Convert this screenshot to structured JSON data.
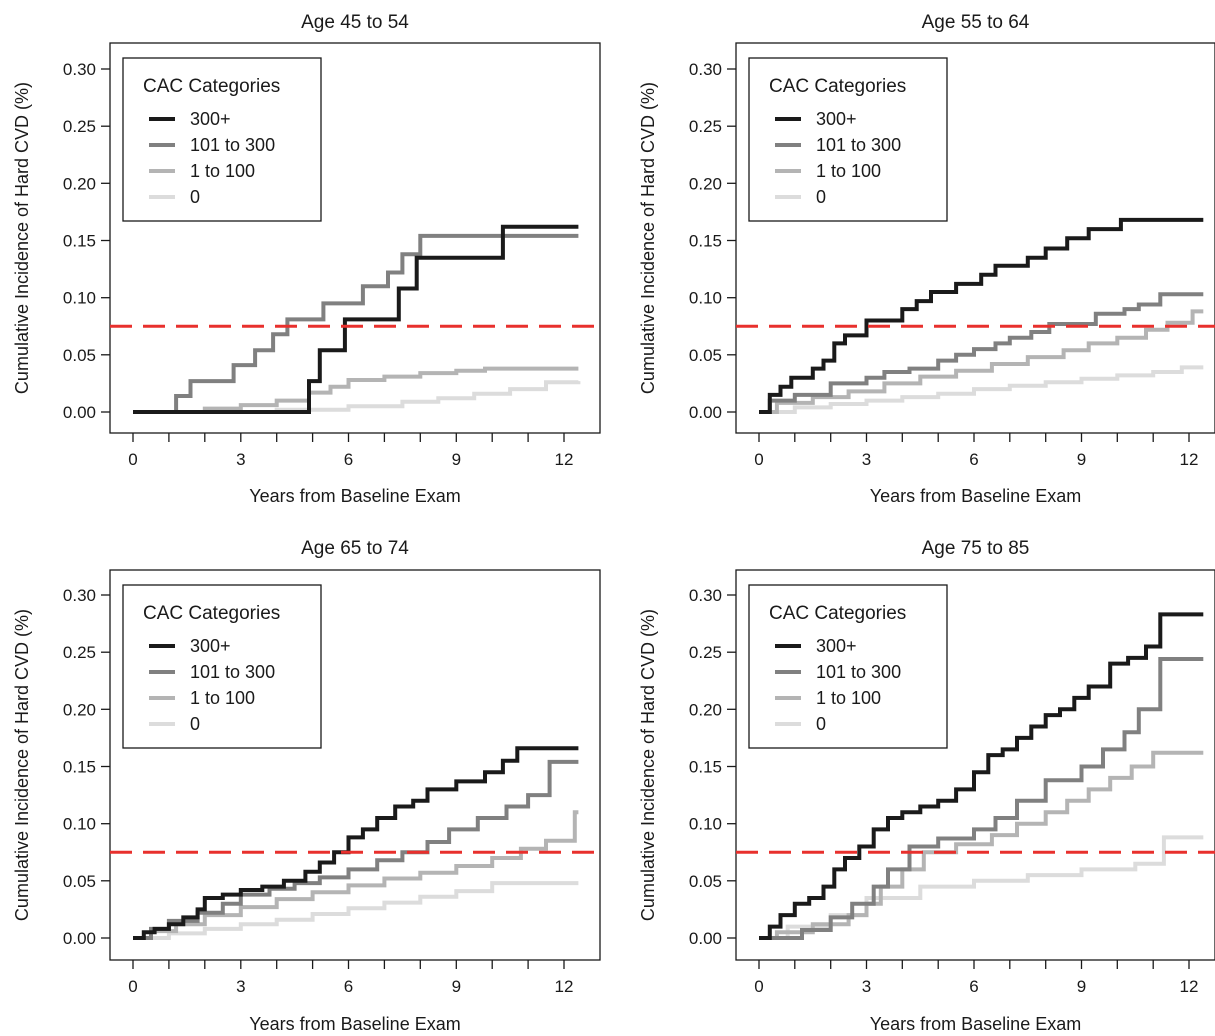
{
  "reference_line": {
    "value": 0.075,
    "color": "#e8302d"
  },
  "series_styles": [
    {
      "name": "300+",
      "color": "#1a1a1a"
    },
    {
      "name": "101 to 300",
      "color": "#808080"
    },
    {
      "name": "1 to 100",
      "color": "#b4b4b4"
    },
    {
      "name": "0",
      "color": "#dcdcdc"
    }
  ],
  "chart_data": [
    {
      "type": "line",
      "step": true,
      "title": "Age 45 to 54",
      "xlabel": "Years from Baseline Exam",
      "ylabel": "Cumulative Incidence of Hard CVD (%)",
      "xlim": [
        0,
        12.5
      ],
      "ylim": [
        0,
        0.3
      ],
      "xticks": [
        0,
        3,
        6,
        9,
        12
      ],
      "yticks": [
        "0.00",
        "0.05",
        "0.10",
        "0.15",
        "0.20",
        "0.25",
        "0.30"
      ],
      "legend": {
        "title": "CAC Categories",
        "position": "top-left",
        "entries": [
          "300+",
          "101 to 300",
          "1 to 100",
          "0"
        ]
      },
      "series": [
        {
          "name": "300+",
          "x": [
            0,
            4.9,
            5.2,
            5.9,
            7.4,
            7.9,
            10.3,
            12.4
          ],
          "y": [
            0,
            0.027,
            0.054,
            0.081,
            0.108,
            0.135,
            0.162,
            0.162
          ]
        },
        {
          "name": "101 to 300",
          "x": [
            0,
            1.2,
            1.6,
            2.8,
            3.4,
            3.9,
            4.3,
            5.3,
            6.4,
            7.1,
            7.5,
            8.0,
            12.4
          ],
          "y": [
            0,
            0.014,
            0.027,
            0.041,
            0.054,
            0.068,
            0.081,
            0.095,
            0.11,
            0.122,
            0.138,
            0.154,
            0.154
          ]
        },
        {
          "name": "1 to 100",
          "x": [
            0,
            2.0,
            3.0,
            4.0,
            4.9,
            5.5,
            6.0,
            7.0,
            8.0,
            9.0,
            9.8,
            12.4
          ],
          "y": [
            0,
            0.003,
            0.006,
            0.01,
            0.017,
            0.022,
            0.028,
            0.031,
            0.034,
            0.036,
            0.038,
            0.038
          ]
        },
        {
          "name": "0",
          "x": [
            0,
            4.0,
            6.0,
            7.5,
            8.5,
            9.5,
            10.5,
            11.5,
            12.4
          ],
          "y": [
            0,
            0.002,
            0.005,
            0.009,
            0.012,
            0.016,
            0.02,
            0.026,
            0.027
          ]
        }
      ]
    },
    {
      "type": "line",
      "step": true,
      "title": "Age 55 to 64",
      "xlabel": "Years from Baseline Exam",
      "ylabel": "Cumulative Incidence of Hard CVD (%)",
      "xlim": [
        0,
        12.5
      ],
      "ylim": [
        0,
        0.3
      ],
      "xticks": [
        0,
        3,
        6,
        9,
        12
      ],
      "yticks": [
        "0.00",
        "0.05",
        "0.10",
        "0.15",
        "0.20",
        "0.25",
        "0.30"
      ],
      "legend": {
        "title": "CAC Categories",
        "position": "top-left",
        "entries": [
          "300+",
          "101 to 300",
          "1 to 100",
          "0"
        ]
      },
      "series": [
        {
          "name": "300+",
          "x": [
            0,
            0.3,
            0.6,
            0.9,
            1.5,
            1.8,
            2.1,
            2.4,
            3.0,
            3.6,
            4.0,
            4.4,
            4.8,
            5.5,
            6.2,
            6.6,
            7.5,
            8.0,
            8.6,
            9.2,
            10.1,
            12.4
          ],
          "y": [
            0,
            0.015,
            0.022,
            0.03,
            0.038,
            0.045,
            0.06,
            0.067,
            0.08,
            0.08,
            0.09,
            0.097,
            0.105,
            0.112,
            0.12,
            0.128,
            0.135,
            0.143,
            0.152,
            0.16,
            0.168,
            0.168
          ]
        },
        {
          "name": "101 to 300",
          "x": [
            0,
            0.3,
            1.0,
            2.0,
            3.0,
            3.5,
            4.2,
            5.0,
            5.5,
            6.0,
            6.6,
            7.0,
            7.6,
            8.1,
            9.4,
            10.2,
            10.6,
            11.2,
            12.4
          ],
          "y": [
            0,
            0.01,
            0.015,
            0.025,
            0.03,
            0.035,
            0.038,
            0.045,
            0.05,
            0.055,
            0.06,
            0.065,
            0.07,
            0.077,
            0.086,
            0.09,
            0.094,
            0.103,
            0.103
          ]
        },
        {
          "name": "1 to 100",
          "x": [
            0,
            0.5,
            1.5,
            2.5,
            3.5,
            4.5,
            5.5,
            6.5,
            7.5,
            8.5,
            9.2,
            10.0,
            10.8,
            11.4,
            12.1,
            12.4
          ],
          "y": [
            0,
            0.008,
            0.013,
            0.018,
            0.025,
            0.031,
            0.036,
            0.042,
            0.048,
            0.054,
            0.06,
            0.065,
            0.072,
            0.078,
            0.088,
            0.088
          ]
        },
        {
          "name": "0",
          "x": [
            0,
            1.0,
            2.0,
            3.0,
            4.0,
            5.0,
            6.0,
            7.0,
            8.0,
            9.0,
            10.0,
            11.0,
            11.8,
            12.4
          ],
          "y": [
            0,
            0.004,
            0.007,
            0.01,
            0.013,
            0.016,
            0.02,
            0.023,
            0.026,
            0.029,
            0.032,
            0.035,
            0.039,
            0.039
          ]
        }
      ]
    },
    {
      "type": "line",
      "step": true,
      "title": "Age 65 to 74",
      "xlabel": "Years from Baseline Exam",
      "ylabel": "Cumulative Incidence of Hard CVD (%)",
      "xlim": [
        0,
        12.5
      ],
      "ylim": [
        0,
        0.3
      ],
      "xticks": [
        0,
        3,
        6,
        9,
        12
      ],
      "yticks": [
        "0.00",
        "0.05",
        "0.10",
        "0.15",
        "0.20",
        "0.25",
        "0.30"
      ],
      "legend": {
        "title": "CAC Categories",
        "position": "top-left",
        "entries": [
          "300+",
          "101 to 300",
          "1 to 100",
          "0"
        ]
      },
      "series": [
        {
          "name": "300+",
          "x": [
            0,
            0.3,
            0.6,
            1.0,
            1.4,
            1.8,
            2.0,
            2.5,
            3.0,
            3.6,
            4.2,
            4.8,
            5.2,
            5.6,
            6.0,
            6.4,
            6.8,
            7.3,
            7.8,
            8.2,
            9.0,
            9.8,
            10.3,
            10.7,
            12.4
          ],
          "y": [
            0,
            0.005,
            0.008,
            0.012,
            0.018,
            0.025,
            0.035,
            0.038,
            0.042,
            0.045,
            0.05,
            0.058,
            0.066,
            0.075,
            0.088,
            0.095,
            0.105,
            0.115,
            0.12,
            0.13,
            0.137,
            0.145,
            0.155,
            0.166,
            0.166
          ]
        },
        {
          "name": "101 to 300",
          "x": [
            0,
            0.5,
            1.0,
            1.8,
            2.5,
            3.0,
            3.8,
            4.5,
            5.2,
            6.0,
            6.8,
            7.5,
            8.2,
            8.8,
            9.6,
            10.4,
            11.0,
            11.6,
            12.4
          ],
          "y": [
            0,
            0.008,
            0.015,
            0.022,
            0.03,
            0.038,
            0.043,
            0.048,
            0.053,
            0.06,
            0.068,
            0.075,
            0.084,
            0.095,
            0.105,
            0.115,
            0.125,
            0.154,
            0.154
          ]
        },
        {
          "name": "1 to 100",
          "x": [
            0,
            0.5,
            1.2,
            2.0,
            3.0,
            4.0,
            5.0,
            6.0,
            7.0,
            8.0,
            9.0,
            10.0,
            10.8,
            11.5,
            12.3,
            12.4
          ],
          "y": [
            0,
            0.006,
            0.012,
            0.02,
            0.027,
            0.034,
            0.04,
            0.046,
            0.052,
            0.057,
            0.063,
            0.07,
            0.078,
            0.085,
            0.11,
            0.11
          ]
        },
        {
          "name": "0",
          "x": [
            0,
            1.0,
            2.0,
            3.0,
            4.0,
            5.0,
            6.0,
            7.0,
            8.0,
            9.0,
            10.0,
            12.4
          ],
          "y": [
            0,
            0.004,
            0.008,
            0.012,
            0.016,
            0.021,
            0.026,
            0.031,
            0.036,
            0.041,
            0.048,
            0.048
          ]
        }
      ]
    },
    {
      "type": "line",
      "step": true,
      "title": "Age 75 to 85",
      "xlabel": "Years from Baseline Exam",
      "ylabel": "Cumulative Incidence of Hard CVD (%)",
      "xlim": [
        0,
        12.5
      ],
      "ylim": [
        0,
        0.3
      ],
      "xticks": [
        0,
        3,
        6,
        9,
        12
      ],
      "yticks": [
        "0.00",
        "0.05",
        "0.10",
        "0.15",
        "0.20",
        "0.25",
        "0.30"
      ],
      "legend": {
        "title": "CAC Categories",
        "position": "top-left",
        "entries": [
          "300+",
          "101 to 300",
          "1 to 100",
          "0"
        ]
      },
      "series": [
        {
          "name": "300+",
          "x": [
            0,
            0.3,
            0.6,
            1.0,
            1.4,
            1.8,
            2.1,
            2.4,
            2.8,
            3.2,
            3.6,
            4.0,
            4.5,
            5.0,
            5.5,
            6.0,
            6.4,
            6.8,
            7.2,
            7.6,
            8.0,
            8.4,
            8.8,
            9.2,
            9.8,
            10.3,
            10.8,
            11.2,
            12.4
          ],
          "y": [
            0,
            0.01,
            0.02,
            0.03,
            0.035,
            0.045,
            0.06,
            0.07,
            0.08,
            0.095,
            0.105,
            0.11,
            0.115,
            0.12,
            0.13,
            0.145,
            0.16,
            0.165,
            0.175,
            0.185,
            0.195,
            0.2,
            0.21,
            0.22,
            0.24,
            0.245,
            0.255,
            0.283,
            0.283
          ]
        },
        {
          "name": "101 to 300",
          "x": [
            0,
            1.2,
            2.0,
            2.6,
            3.2,
            3.6,
            4.2,
            5.0,
            6.0,
            6.6,
            7.2,
            8.0,
            9.0,
            9.6,
            10.2,
            10.6,
            11.2,
            12.4
          ],
          "y": [
            0,
            0.007,
            0.018,
            0.03,
            0.045,
            0.06,
            0.08,
            0.087,
            0.095,
            0.105,
            0.12,
            0.138,
            0.15,
            0.165,
            0.18,
            0.2,
            0.244,
            0.244
          ]
        },
        {
          "name": "1 to 100",
          "x": [
            0,
            0.5,
            1.5,
            2.5,
            3.0,
            3.4,
            4.0,
            4.6,
            5.5,
            6.5,
            7.2,
            8.0,
            8.6,
            9.2,
            9.8,
            10.4,
            11.0,
            12.4
          ],
          "y": [
            0,
            0.005,
            0.012,
            0.02,
            0.03,
            0.045,
            0.06,
            0.075,
            0.082,
            0.09,
            0.1,
            0.11,
            0.12,
            0.13,
            0.14,
            0.15,
            0.162,
            0.162
          ]
        },
        {
          "name": "0",
          "x": [
            0,
            0.8,
            2.0,
            3.0,
            4.5,
            6.0,
            7.5,
            9.0,
            10.5,
            11.3,
            12.4
          ],
          "y": [
            0,
            0.01,
            0.02,
            0.035,
            0.045,
            0.05,
            0.055,
            0.06,
            0.065,
            0.088,
            0.088
          ]
        }
      ]
    }
  ]
}
